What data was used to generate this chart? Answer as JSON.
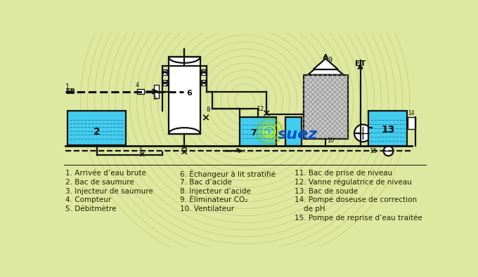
{
  "bg_color": "#dde8a0",
  "line_color": "#111111",
  "water_color": "#44ccee",
  "arc_color": "#c8cc70",
  "green1": "#99cc00",
  "green2": "#c8e000",
  "suez_blue": "#0055cc",
  "legend_col1": [
    "1. Arrivée d’eau brute",
    "2. Bac de saumure",
    "3. Injecteur de saumure",
    "4. Compteur",
    "5. Débitmètre"
  ],
  "legend_col2": [
    "6. Échangeur à lit stratifié",
    "7. Bac d’acide",
    "8. Injecteur d’acide",
    "9. Éliminateur CO₂",
    "10. Ventilateur"
  ],
  "legend_col3": [
    "11. Bac de prise de niveau",
    "12. Vanne régulatrice de niveau",
    "13. Bac de soude",
    "14. Pompe doseuse de correction",
    "    de pH",
    "15. Pompe de reprise d’eau traitée"
  ]
}
